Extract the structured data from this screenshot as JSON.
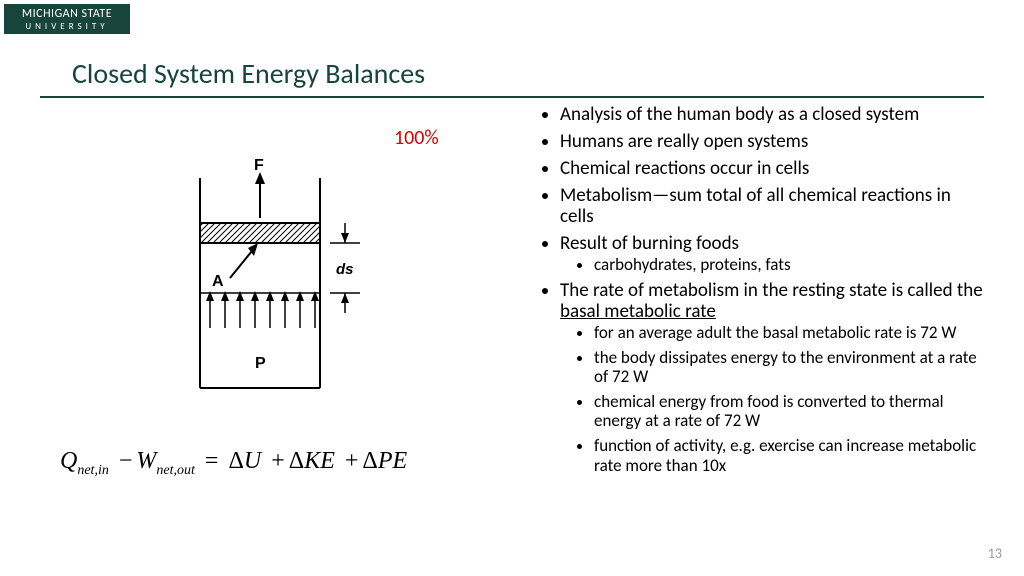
{
  "logo": {
    "line1": "MICHIGAN STATE",
    "line2": "UNIVERSITY"
  },
  "title": "Closed System Energy Balances",
  "percent": "100%",
  "diagram": {
    "labels": {
      "F": "F",
      "A": "A",
      "ds": "ds",
      "P": "P"
    },
    "colors": {
      "stroke": "#000000",
      "hatch": "#000000"
    }
  },
  "equation": {
    "Q": "Q",
    "Qsub": "net,in",
    "W": "W",
    "Wsub": "net,out",
    "eq": "=",
    "dU": "U",
    "dKE": "KE",
    "dPE": "PE",
    "delta": "Δ",
    "minus": "−",
    "plus": "+"
  },
  "bullets": [
    {
      "text": "Analysis of the human body as a closed system"
    },
    {
      "text": "Humans are really open systems"
    },
    {
      "text": "Chemical reactions occur in cells"
    },
    {
      "text": "Metabolism—sum total of all chemical reactions in cells"
    },
    {
      "text": "Result of burning foods",
      "sub": [
        "carbohydrates, proteins, fats"
      ]
    },
    {
      "text_pre": "The rate of metabolism in the resting state is called the ",
      "underline": "basal metabolic rate",
      "sub": [
        "for an average adult the basal metabolic rate is 72 W",
        "the body dissipates energy to the environment at a rate of 72 W",
        "chemical energy from food is converted to thermal energy at a rate of 72 W",
        "function of activity, e.g. exercise can increase metabolic rate more than 10x"
      ]
    }
  ],
  "page_number": "13"
}
